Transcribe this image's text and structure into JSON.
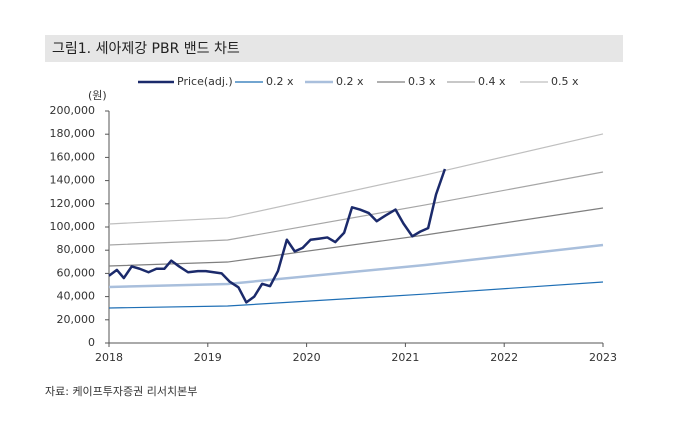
{
  "chart_data": {
    "type": "line",
    "title": "그림1. 세아제강 PBR 밴드 차트",
    "y_unit": "(원)",
    "source": "자료: 케이프투자증권 리서치본부",
    "xlim": [
      2018,
      2023
    ],
    "xticks": [
      2018,
      2019,
      2020,
      2021,
      2022,
      2023
    ],
    "ylim": [
      0,
      200000
    ],
    "yticks": [
      0,
      {
        "value": 20000,
        "label": "20,000"
      },
      {
        "value": 40000,
        "label": "40,000"
      },
      {
        "value": 60000,
        "label": "60,000"
      },
      {
        "value": 80000,
        "label": "80,000"
      },
      {
        "value": 100000,
        "label": "100,000"
      },
      {
        "value": 120000,
        "label": "120,000"
      },
      {
        "value": 140000,
        "label": "140,000"
      },
      {
        "value": 160000,
        "label": "160,000"
      },
      {
        "value": 180000,
        "label": "180,000"
      },
      {
        "value": 200000,
        "label": "200,000"
      }
    ],
    "series": [
      {
        "name": "Price(adj.)",
        "color": "#1b2a6b",
        "width": 2.5,
        "x": [
          2018.0,
          2018.08,
          2018.15,
          2018.23,
          2018.31,
          2018.4,
          2018.48,
          2018.56,
          2018.63,
          2018.71,
          2018.8,
          2018.9,
          2018.98,
          2019.06,
          2019.14,
          2019.22,
          2019.31,
          2019.39,
          2019.47,
          2019.55,
          2019.63,
          2019.71,
          2019.8,
          2019.88,
          2019.96,
          2020.04,
          2020.13,
          2020.21,
          2020.29,
          2020.38,
          2020.46,
          2020.54,
          2020.63,
          2020.71,
          2020.8,
          2020.9,
          2020.98,
          2021.07,
          2021.15,
          2021.23,
          2021.31,
          2021.4
        ],
        "values": [
          58000,
          63000,
          56000,
          66000,
          64000,
          61000,
          64000,
          64000,
          71000,
          66000,
          61000,
          62000,
          62000,
          61000,
          60000,
          53000,
          48000,
          35000,
          40000,
          51000,
          49000,
          62000,
          89000,
          79000,
          82000,
          89000,
          90000,
          91000,
          87000,
          95000,
          117000,
          115000,
          112000,
          105000,
          110000,
          115000,
          103000,
          92000,
          96000,
          99000,
          128000,
          150000
        ]
      },
      {
        "name": "0.2 x",
        "color": "#1f6fb5",
        "width": 1.2,
        "x": [
          2018,
          2019.2,
          2021.2,
          2023
        ],
        "values": [
          30200,
          31900,
          42200,
          52600
        ]
      },
      {
        "name": "0.2 x",
        "color": "#a9bfdc",
        "width": 2.5,
        "x": [
          2018,
          2019.2,
          2021.2,
          2023
        ],
        "values": [
          48300,
          50900,
          67200,
          84500
        ]
      },
      {
        "name": "0.3 x",
        "color": "#7f7f7f",
        "width": 1.2,
        "x": [
          2018,
          2019.2,
          2021.2,
          2023
        ],
        "values": [
          66400,
          69800,
          93100,
          116400
        ]
      },
      {
        "name": "0.4 x",
        "color": "#a6a6a6",
        "width": 1.2,
        "x": [
          2018,
          2019.2,
          2021.2,
          2023
        ],
        "values": [
          84500,
          88800,
          119000,
          147400
        ]
      },
      {
        "name": "0.5 x",
        "color": "#bfbfbf",
        "width": 1.2,
        "x": [
          2018,
          2019.2,
          2021.2,
          2023
        ],
        "values": [
          102600,
          107800,
          144800,
          180200
        ]
      }
    ]
  }
}
